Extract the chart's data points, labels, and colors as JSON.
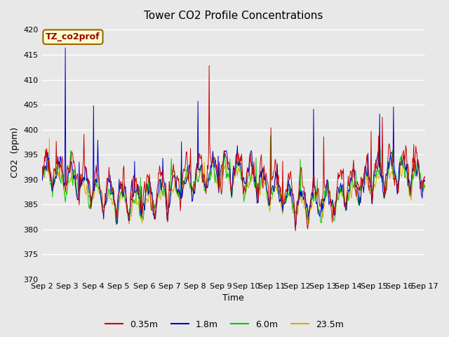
{
  "title": "Tower CO2 Profile Concentrations",
  "xlabel": "Time",
  "ylabel": "CO2  (ppm)",
  "ylim": [
    370,
    421
  ],
  "yticks": [
    370,
    375,
    380,
    385,
    390,
    395,
    400,
    405,
    410,
    415,
    420
  ],
  "n_days": 15,
  "n_per_day": 48,
  "xtick_labels": [
    "Sep 2",
    "Sep 3",
    "Sep 4",
    "Sep 5",
    "Sep 6",
    "Sep 7",
    "Sep 8",
    "Sep 9",
    "Sep 10",
    "Sep 11",
    "Sep 12",
    "Sep 13",
    "Sep 14",
    "Sep 15",
    "Sep 16",
    "Sep 17"
  ],
  "line_colors": [
    "#cc0000",
    "#0000cc",
    "#00cc00",
    "#ddaa00"
  ],
  "line_labels": [
    "0.35m",
    "1.8m",
    "6.0m",
    "23.5m"
  ],
  "bg_color": "#e8e8e8",
  "fig_bg_color": "#e8e8e8",
  "annotation_text": "TZ_co2prof",
  "annotation_bg": "#ffffcc",
  "annotation_edge": "#996600",
  "title_fontsize": 11,
  "axis_fontsize": 9,
  "tick_fontsize": 8
}
